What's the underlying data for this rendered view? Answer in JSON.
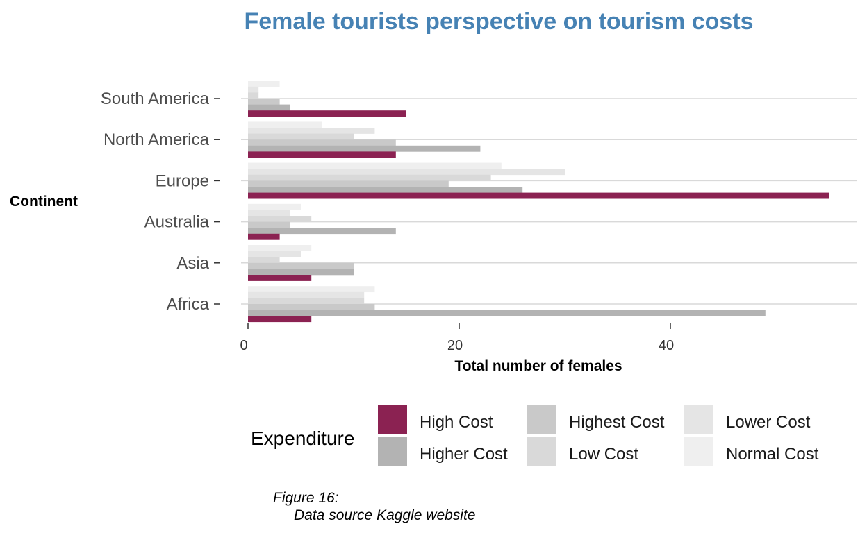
{
  "chart_data": {
    "type": "bar",
    "orientation": "horizontal",
    "title": "Female tourists perspective on tourism costs",
    "xlabel": "Total number of females",
    "ylabel": "Continent",
    "categories": [
      "Africa",
      "Asia",
      "Australia",
      "Europe",
      "North America",
      "South America"
    ],
    "xticks": [
      0,
      20,
      40
    ],
    "xlim": [
      0,
      58
    ],
    "grid": "horizontal",
    "legend": {
      "title": "Expenditure",
      "position": "bottom"
    },
    "series": [
      {
        "name": "High Cost",
        "color": "#8B2252",
        "values": [
          6,
          6,
          3,
          55,
          14,
          15
        ]
      },
      {
        "name": "Higher Cost",
        "color": "#B3B3B3",
        "values": [
          49,
          10,
          14,
          26,
          22,
          4
        ]
      },
      {
        "name": "Highest Cost",
        "color": "#C9C9C9",
        "values": [
          12,
          10,
          4,
          19,
          14,
          3
        ]
      },
      {
        "name": "Low Cost",
        "color": "#D9D9D9",
        "values": [
          11,
          3,
          6,
          23,
          10,
          1
        ]
      },
      {
        "name": "Lower Cost",
        "color": "#E5E5E5",
        "values": [
          11,
          5,
          4,
          30,
          12,
          1
        ]
      },
      {
        "name": "Normal Cost",
        "color": "#EFEFEF",
        "values": [
          12,
          6,
          5,
          24,
          7,
          3
        ]
      }
    ]
  },
  "caption": {
    "line1": "Figure 16:",
    "line2": "Data source Kaggle website"
  }
}
